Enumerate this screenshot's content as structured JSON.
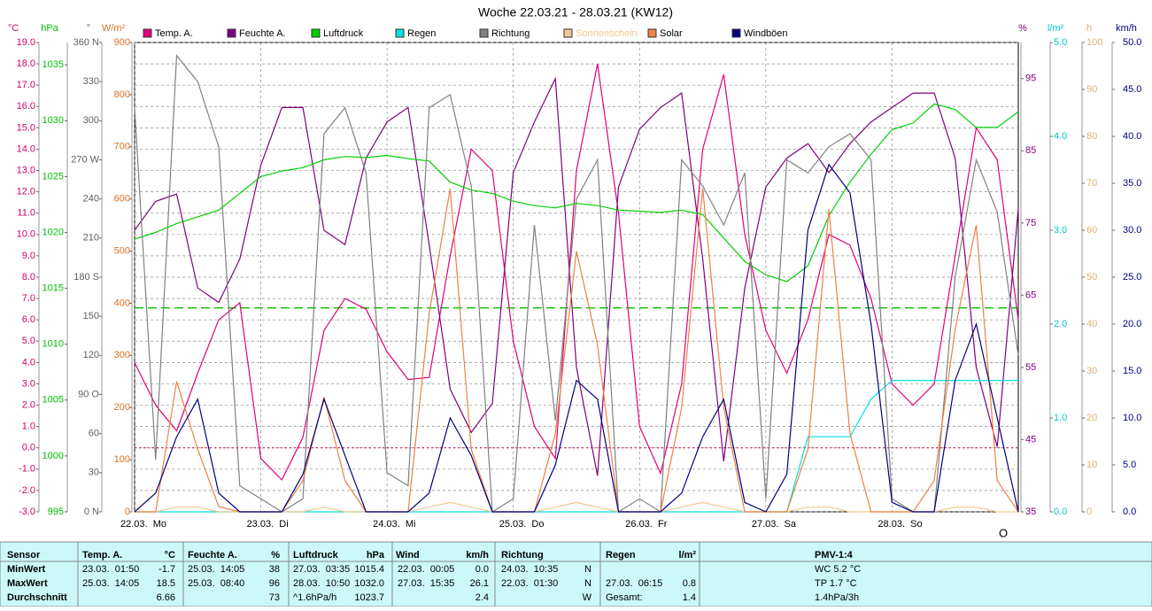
{
  "chart_data": {
    "type": "line",
    "title": "Woche 22.03.21 - 28.03.21 (KW12)",
    "x": [
      0,
      4,
      8,
      12,
      16,
      20,
      24,
      28,
      32,
      36,
      40,
      44,
      48,
      52,
      56,
      60,
      64,
      68,
      72,
      76,
      80,
      84,
      88,
      92,
      96,
      100,
      104,
      108,
      112,
      116,
      120,
      124,
      128,
      132,
      136,
      140,
      144,
      148,
      152,
      156,
      160,
      164,
      168
    ],
    "xlim": [
      0,
      168
    ],
    "xticks": [
      {
        "value": 0,
        "label": "22.03.  Mo"
      },
      {
        "value": 24,
        "label": "23.03.  Di"
      },
      {
        "value": 48,
        "label": "24.03.  Mi"
      },
      {
        "value": 72,
        "label": "25.03.  Do"
      },
      {
        "value": 96,
        "label": "26.03.  Fr"
      },
      {
        "value": 120,
        "label": "27.03.  Sa"
      },
      {
        "value": 144,
        "label": "28.03.  So"
      }
    ],
    "grid": true,
    "axes": [
      {
        "unit": "°C",
        "color": "#d0006a",
        "lim": [
          -3,
          19
        ],
        "ticks": [
          {
            "value": -3,
            "label": "-3.0"
          },
          {
            "value": -2,
            "label": "-2.0"
          },
          {
            "value": -1,
            "label": "-1.0"
          },
          {
            "value": 0,
            "label": "0.0"
          },
          {
            "value": 1,
            "label": "1.0"
          },
          {
            "value": 2,
            "label": "2.0"
          },
          {
            "value": 3,
            "label": "3.0"
          },
          {
            "value": 4,
            "label": "4.0"
          },
          {
            "value": 5,
            "label": "5.0"
          },
          {
            "value": 6,
            "label": "6.0"
          },
          {
            "value": 7,
            "label": "7.0"
          },
          {
            "value": 8,
            "label": "8.0"
          },
          {
            "value": 9,
            "label": "9.0"
          },
          {
            "value": 10,
            "label": "10.0"
          },
          {
            "value": 11,
            "label": "11.0"
          },
          {
            "value": 12,
            "label": "12.0"
          },
          {
            "value": 13,
            "label": "13.0"
          },
          {
            "value": 14,
            "label": "14.0"
          },
          {
            "value": 15,
            "label": "15.0"
          },
          {
            "value": 16,
            "label": "16.0"
          },
          {
            "value": 17,
            "label": "17.0"
          },
          {
            "value": 18,
            "label": "18.0"
          },
          {
            "value": 19,
            "label": "19.0"
          }
        ]
      },
      {
        "unit": "hPa",
        "color": "#00c000",
        "lim": [
          995,
          1037
        ],
        "ticks": [
          995,
          1000,
          1005,
          1010,
          1015,
          1020,
          1025,
          1030,
          1035
        ]
      },
      {
        "unit": "°",
        "color": "#606060",
        "lim": [
          0,
          360
        ],
        "ticks": [
          {
            "value": 0,
            "label": "0 N"
          },
          30,
          60,
          {
            "value": 90,
            "label": "90 O"
          },
          120,
          150,
          {
            "value": 180,
            "label": "180 S"
          },
          210,
          240,
          {
            "value": 270,
            "label": "270 W"
          },
          300,
          330,
          {
            "value": 360,
            "label": "360 N"
          }
        ]
      },
      {
        "unit": "W/m²",
        "color": "#e07020",
        "lim": [
          0,
          900
        ],
        "ticks": [
          0,
          100,
          200,
          300,
          400,
          500,
          600,
          700,
          800,
          900
        ]
      },
      {
        "unit": "%",
        "color": "#800080",
        "lim": [
          35,
          100
        ],
        "ticks": [
          35,
          45,
          55,
          65,
          75,
          85,
          95
        ]
      },
      {
        "unit": "l/m²",
        "color": "#00c8c8",
        "lim": [
          0,
          5
        ],
        "ticks": [
          {
            "value": 0,
            "label": "0.0"
          },
          {
            "value": 1,
            "label": "1.0"
          },
          {
            "value": 2,
            "label": "2.0"
          },
          {
            "value": 3,
            "label": "3.0"
          },
          {
            "value": 4,
            "label": "4.0"
          },
          {
            "value": 5,
            "label": "5.0"
          }
        ]
      },
      {
        "unit": "h",
        "color": "#e0b070",
        "lim": [
          0,
          100
        ],
        "ticks": [
          0,
          10,
          20,
          30,
          40,
          50,
          60,
          70,
          80,
          90,
          100
        ]
      },
      {
        "unit": "km/h",
        "color": "#000080",
        "lim": [
          0,
          50
        ],
        "ticks": [
          {
            "value": 0,
            "label": "0.0"
          },
          {
            "value": 5,
            "label": "5.0"
          },
          {
            "value": 10,
            "label": "10.0"
          },
          {
            "value": 15,
            "label": "15.0"
          },
          {
            "value": 20,
            "label": "20.0"
          },
          {
            "value": 25,
            "label": "25.0"
          },
          {
            "value": 30,
            "label": "30.0"
          },
          {
            "value": 35,
            "label": "35.0"
          },
          {
            "value": 40,
            "label": "40.0"
          },
          {
            "value": 45,
            "label": "45.0"
          },
          {
            "value": 50,
            "label": "50.0"
          }
        ]
      }
    ],
    "reference_lines": [
      {
        "axis": 1,
        "value": 1013.25,
        "color": "#00c000"
      },
      {
        "axis": 0,
        "value": 0,
        "color": "#c00050"
      }
    ],
    "series": [
      {
        "name": "Temp. A.",
        "color": "#e0007a",
        "axis": 0,
        "values": [
          4.0,
          2.0,
          0.8,
          3.5,
          6.0,
          6.8,
          -0.5,
          -1.5,
          0.5,
          5.5,
          7.0,
          6.5,
          4.5,
          3.2,
          3.3,
          9.0,
          14.0,
          13.0,
          5.0,
          1.0,
          -0.5,
          13.0,
          18.0,
          11.0,
          1.0,
          -1.2,
          3.0,
          14.0,
          17.5,
          10.0,
          5.5,
          3.5,
          6.0,
          10.0,
          9.5,
          7.0,
          3.0,
          2.0,
          3.0,
          9.0,
          15.0,
          13.5,
          6.0
        ]
      },
      {
        "name": "Feuchte A.",
        "color": "#800080",
        "axis": 4,
        "values": [
          74,
          78,
          79,
          66,
          64,
          70,
          83,
          91,
          91,
          74,
          72,
          84,
          89,
          91,
          72,
          52,
          46,
          50,
          82,
          89,
          95,
          55,
          40,
          80,
          88,
          91,
          93,
          70,
          42,
          66,
          80,
          84,
          86,
          82,
          86,
          89,
          91,
          93,
          93,
          84,
          55,
          44,
          77
        ]
      },
      {
        "name": "Luftdruck",
        "color": "#00d000",
        "axis": 1,
        "values": [
          1019.4,
          1020.0,
          1020.8,
          1021.4,
          1022.0,
          1023.5,
          1025.0,
          1025.5,
          1025.8,
          1026.5,
          1026.8,
          1026.7,
          1026.9,
          1026.6,
          1026.4,
          1024.5,
          1023.8,
          1023.5,
          1022.8,
          1022.4,
          1022.2,
          1022.6,
          1022.4,
          1022.0,
          1021.9,
          1021.8,
          1022.0,
          1021.6,
          1019.5,
          1017.4,
          1016.2,
          1015.6,
          1017.0,
          1021.5,
          1024.5,
          1027.0,
          1029.2,
          1029.8,
          1031.5,
          1031.0,
          1029.4,
          1029.4,
          1030.8
        ]
      },
      {
        "name": "Regen",
        "color": "#00e0e0",
        "axis": 5,
        "values": [
          0,
          0,
          0,
          0,
          0,
          0,
          0,
          0,
          0,
          0,
          0,
          0,
          0,
          0,
          0,
          0,
          0,
          0,
          0,
          0,
          0,
          0,
          0,
          0,
          0,
          0,
          0,
          0,
          0,
          0,
          0,
          0,
          0.8,
          0.8,
          0.8,
          1.2,
          1.4,
          1.4,
          1.4,
          1.4,
          1.4,
          1.4,
          1.4
        ]
      },
      {
        "name": "Richtung",
        "color": "#808080",
        "axis": 2,
        "values": [
          310,
          40,
          350,
          330,
          280,
          20,
          10,
          0,
          10,
          290,
          310,
          260,
          30,
          20,
          310,
          320,
          250,
          0,
          10,
          220,
          70,
          240,
          270,
          0,
          10,
          0,
          270,
          250,
          220,
          260,
          10,
          270,
          260,
          280,
          290,
          270,
          10,
          0,
          0,
          180,
          270,
          230,
          120
        ]
      },
      {
        "name": "Sonnenschein",
        "color": "#f0c890",
        "axis": 6,
        "values": [
          0,
          0,
          1,
          1,
          0,
          0,
          0,
          0,
          0,
          1,
          0,
          0,
          0,
          0,
          1,
          2,
          1,
          0,
          0,
          0,
          1,
          2,
          1,
          0,
          0,
          0,
          1,
          2,
          1,
          0,
          0,
          0,
          1,
          1,
          0,
          0,
          0,
          0,
          0,
          1,
          1,
          0,
          0
        ]
      },
      {
        "name": "Solar",
        "color": "#f08040",
        "axis": 3,
        "values": [
          0,
          0,
          250,
          120,
          10,
          0,
          0,
          0,
          60,
          220,
          60,
          0,
          0,
          0,
          380,
          620,
          120,
          0,
          0,
          0,
          150,
          500,
          320,
          0,
          0,
          0,
          200,
          620,
          200,
          0,
          0,
          0,
          120,
          580,
          150,
          0,
          0,
          0,
          60,
          350,
          550,
          60,
          0
        ]
      },
      {
        "name": "Windböen",
        "color": "#000080",
        "axis": 7,
        "values": [
          0,
          2,
          8,
          12,
          2,
          0,
          0,
          0,
          4,
          12,
          6,
          0,
          0,
          0,
          2,
          10,
          6,
          0,
          0,
          0,
          5,
          14,
          12,
          0,
          0,
          0,
          2,
          8,
          12,
          1,
          0,
          4,
          30,
          37,
          34,
          20,
          1,
          0,
          0,
          14,
          20,
          10,
          0
        ]
      }
    ],
    "annotation": "O"
  },
  "stats_table": {
    "rows": [
      [
        "Sensor",
        "Temp. A.",
        "°C",
        "Feuchte A.",
        "%",
        "Luftdruck",
        "hPa",
        "Wind",
        "km/h",
        "Richtung",
        "Regen",
        "l/m²",
        "PMV-1:4"
      ],
      [
        "MinWert",
        "23.03.  01:50",
        "-1.7",
        "25.03.  14:05",
        "38",
        "27.03.  03:35",
        "1015.4",
        "22.03.  00:05",
        "0.0",
        "24.03.  10:35",
        "N",
        "WC 5.2 °C"
      ],
      [
        "MaxWert",
        "25.03.  14:05",
        "18.5",
        "25.03.  08:40",
        "96",
        "28.03.  10:50",
        "1032.0",
        "27.03.  15:35",
        "26.1",
        "22.03.  01:30",
        "N",
        "27.03.  06:15",
        "0.8",
        "TP 1.7 °C"
      ],
      [
        "Durchschnitt",
        "6.66",
        "73",
        "^1.6hPa/h",
        "1023.7",
        "2.4",
        "W",
        "Gesamt:",
        "1.4",
        "1.4hPa/3h"
      ]
    ]
  }
}
